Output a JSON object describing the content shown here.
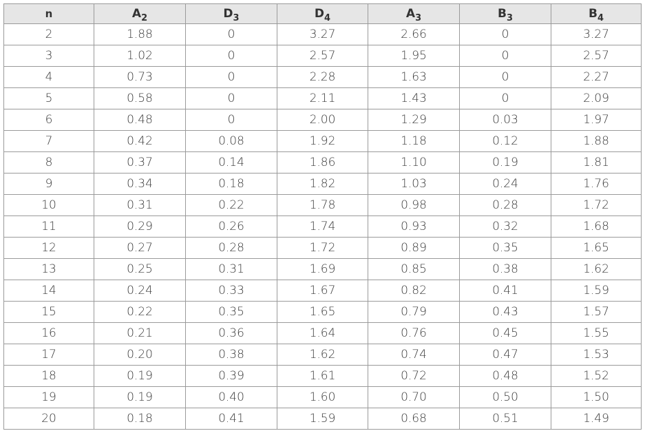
{
  "table": {
    "headers": [
      {
        "base": "n",
        "sub": ""
      },
      {
        "base": "A",
        "sub": "2"
      },
      {
        "base": "D",
        "sub": "3"
      },
      {
        "base": "D",
        "sub": "4"
      },
      {
        "base": "A",
        "sub": "3"
      },
      {
        "base": "B",
        "sub": "3"
      },
      {
        "base": "B",
        "sub": "4"
      }
    ],
    "rows": [
      [
        "2",
        "1.88",
        "0",
        "3.27",
        "2.66",
        "0",
        "3.27"
      ],
      [
        "3",
        "1.02",
        "0",
        "2.57",
        "1.95",
        "0",
        "2.57"
      ],
      [
        "4",
        "0.73",
        "0",
        "2.28",
        "1.63",
        "0",
        "2.27"
      ],
      [
        "5",
        "0.58",
        "0",
        "2.11",
        "1.43",
        "0",
        "2.09"
      ],
      [
        "6",
        "0.48",
        "0",
        "2.00",
        "1.29",
        "0.03",
        "1.97"
      ],
      [
        "7",
        "0.42",
        "0.08",
        "1.92",
        "1.18",
        "0.12",
        "1.88"
      ],
      [
        "8",
        "0.37",
        "0.14",
        "1.86",
        "1.10",
        "0.19",
        "1.81"
      ],
      [
        "9",
        "0.34",
        "0.18",
        "1.82",
        "1.03",
        "0.24",
        "1.76"
      ],
      [
        "10",
        "0.31",
        "0.22",
        "1.78",
        "0.98",
        "0.28",
        "1.72"
      ],
      [
        "11",
        "0.29",
        "0.26",
        "1.74",
        "0.93",
        "0.32",
        "1.68"
      ],
      [
        "12",
        "0.27",
        "0.28",
        "1.72",
        "0.89",
        "0.35",
        "1.65"
      ],
      [
        "13",
        "0.25",
        "0.31",
        "1.69",
        "0.85",
        "0.38",
        "1.62"
      ],
      [
        "14",
        "0.24",
        "0.33",
        "1.67",
        "0.82",
        "0.41",
        "1.59"
      ],
      [
        "15",
        "0.22",
        "0.35",
        "1.65",
        "0.79",
        "0.43",
        "1.57"
      ],
      [
        "16",
        "0.21",
        "0.36",
        "1.64",
        "0.76",
        "0.45",
        "1.55"
      ],
      [
        "17",
        "0.20",
        "0.38",
        "1.62",
        "0.74",
        "0.47",
        "1.53"
      ],
      [
        "18",
        "0.19",
        "0.39",
        "1.61",
        "0.72",
        "0.48",
        "1.52"
      ],
      [
        "19",
        "0.19",
        "0.40",
        "1.60",
        "0.70",
        "0.50",
        "1.50"
      ],
      [
        "20",
        "0.18",
        "0.41",
        "1.59",
        "0.68",
        "0.51",
        "1.49"
      ]
    ]
  }
}
